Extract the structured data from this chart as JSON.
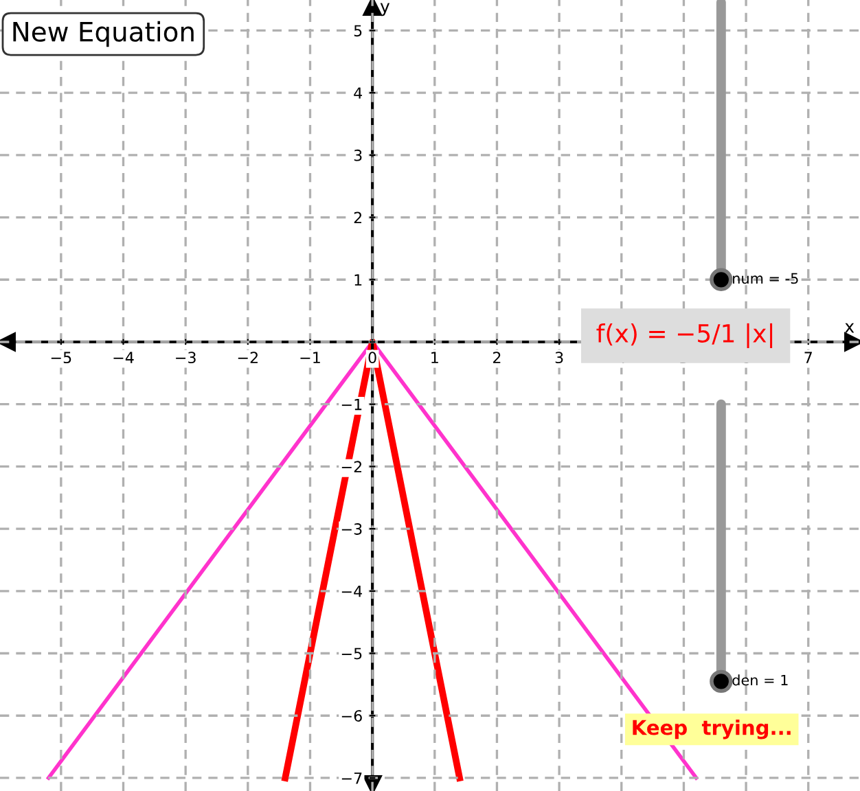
{
  "chart_data": {
    "type": "line",
    "xlabel": "x",
    "ylabel": "y",
    "xlim": [
      -5.98,
      7.83
    ],
    "ylim": [
      -7.21,
      5.49
    ],
    "xticks": [
      -5,
      -4,
      -3,
      -2,
      -1,
      0,
      1,
      2,
      3,
      4,
      5,
      6,
      7
    ],
    "yticks": [
      -7,
      -6,
      -5,
      -4,
      -3,
      -2,
      -1,
      {
        "value": 0,
        "label": null
      },
      1,
      2,
      3,
      4,
      5
    ],
    "grid": true,
    "legend": false,
    "marker": "none",
    "series": [
      {
        "color": "#ff33cc",
        "x": [
          -5.2,
          0,
          5.2
        ],
        "values": [
          -7,
          0,
          -7
        ]
      },
      {
        "color": "#ff0000",
        "x": [
          -1.4,
          0,
          1.4
        ],
        "values": [
          -7,
          0,
          -7
        ]
      }
    ],
    "annotations": [
      "New Equation",
      "num = -5",
      "f(x) = −5/1 |x|",
      "den = 1",
      "Keep  trying..."
    ]
  }
}
